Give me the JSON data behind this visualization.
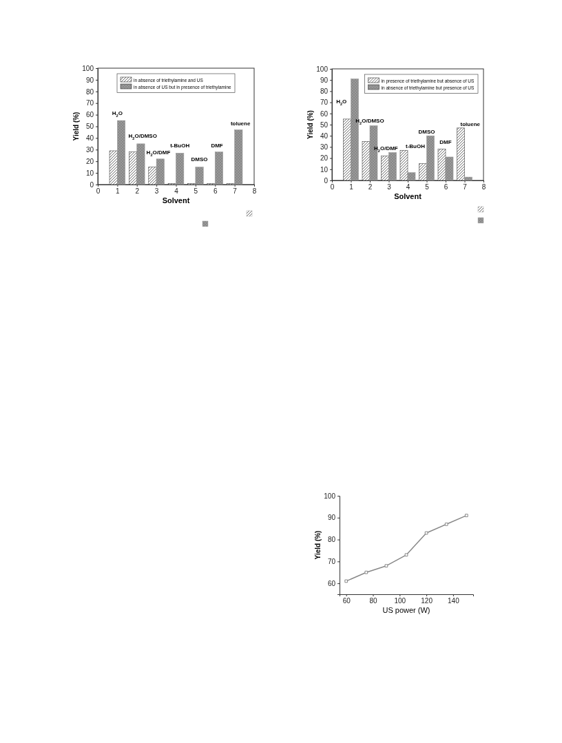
{
  "chart_data": [
    {
      "type": "bar",
      "xlabel": "Solvent",
      "ylabel": "Yield (%)",
      "x": [
        1,
        2,
        3,
        4,
        5,
        6,
        7
      ],
      "xlim": [
        0,
        8
      ],
      "xticks": [
        0,
        1,
        2,
        3,
        4,
        5,
        6,
        7,
        8
      ],
      "ylim": [
        0,
        100
      ],
      "yticks": [
        0,
        10,
        20,
        30,
        40,
        50,
        60,
        70,
        80,
        90,
        100
      ],
      "legend": "top",
      "series": [
        {
          "name": "in absence of triethylamine and US",
          "color": "#444444",
          "values": [
            29,
            28,
            15,
            1,
            1,
            1,
            1
          ]
        },
        {
          "name": "in absence of US but in presence of triethylamine",
          "color": "#9a9a9a",
          "values": [
            55,
            35,
            22,
            27,
            15,
            28,
            47
          ]
        }
      ],
      "annotations": [
        "H$_{2}$O",
        "H$_{2}$O/DMSO",
        "H$_{2}$O/DMF",
        "t-BuOH",
        "DMSO",
        "DMF",
        "toluene"
      ]
    },
    {
      "type": "bar",
      "xlabel": "Solvent",
      "ylabel": "Yield (%)",
      "x": [
        1,
        2,
        3,
        4,
        5,
        6,
        7
      ],
      "xlim": [
        0,
        8
      ],
      "xticks": [
        0,
        1,
        2,
        3,
        4,
        5,
        6,
        7,
        8
      ],
      "ylim": [
        0,
        100
      ],
      "yticks": [
        0,
        10,
        20,
        30,
        40,
        50,
        60,
        70,
        80,
        90,
        100
      ],
      "legend": "top right",
      "series": [
        {
          "name": "in presence of triethylamine but absence of US",
          "color": "#444444",
          "values": [
            55,
            35,
            22,
            27,
            15,
            28,
            47
          ]
        },
        {
          "name": "in absence  of triethylamine but presence of US",
          "color": "#9a9a9a",
          "values": [
            91,
            49,
            25,
            7,
            40,
            21,
            3
          ]
        }
      ],
      "annotations": [
        "H$_{2}$O",
        "H$_{2}$O/DMSO",
        "H$_{2}$O/DMF",
        "t-BuOH",
        "DMSO",
        "DMF",
        "toluene"
      ]
    },
    {
      "type": "line",
      "xlabel": "US power (W)",
      "ylabel": "Yield (%)",
      "x": [
        60,
        75,
        90,
        105,
        120,
        135,
        150
      ],
      "values": [
        61,
        65,
        68,
        73,
        83,
        87,
        91
      ],
      "color": "#888888",
      "marker": "square",
      "xlim": [
        55,
        155
      ],
      "xticks": [
        60,
        80,
        100,
        120,
        140
      ],
      "ylim": [
        55,
        100
      ],
      "yticks": [
        60,
        70,
        80,
        90,
        100
      ]
    }
  ]
}
